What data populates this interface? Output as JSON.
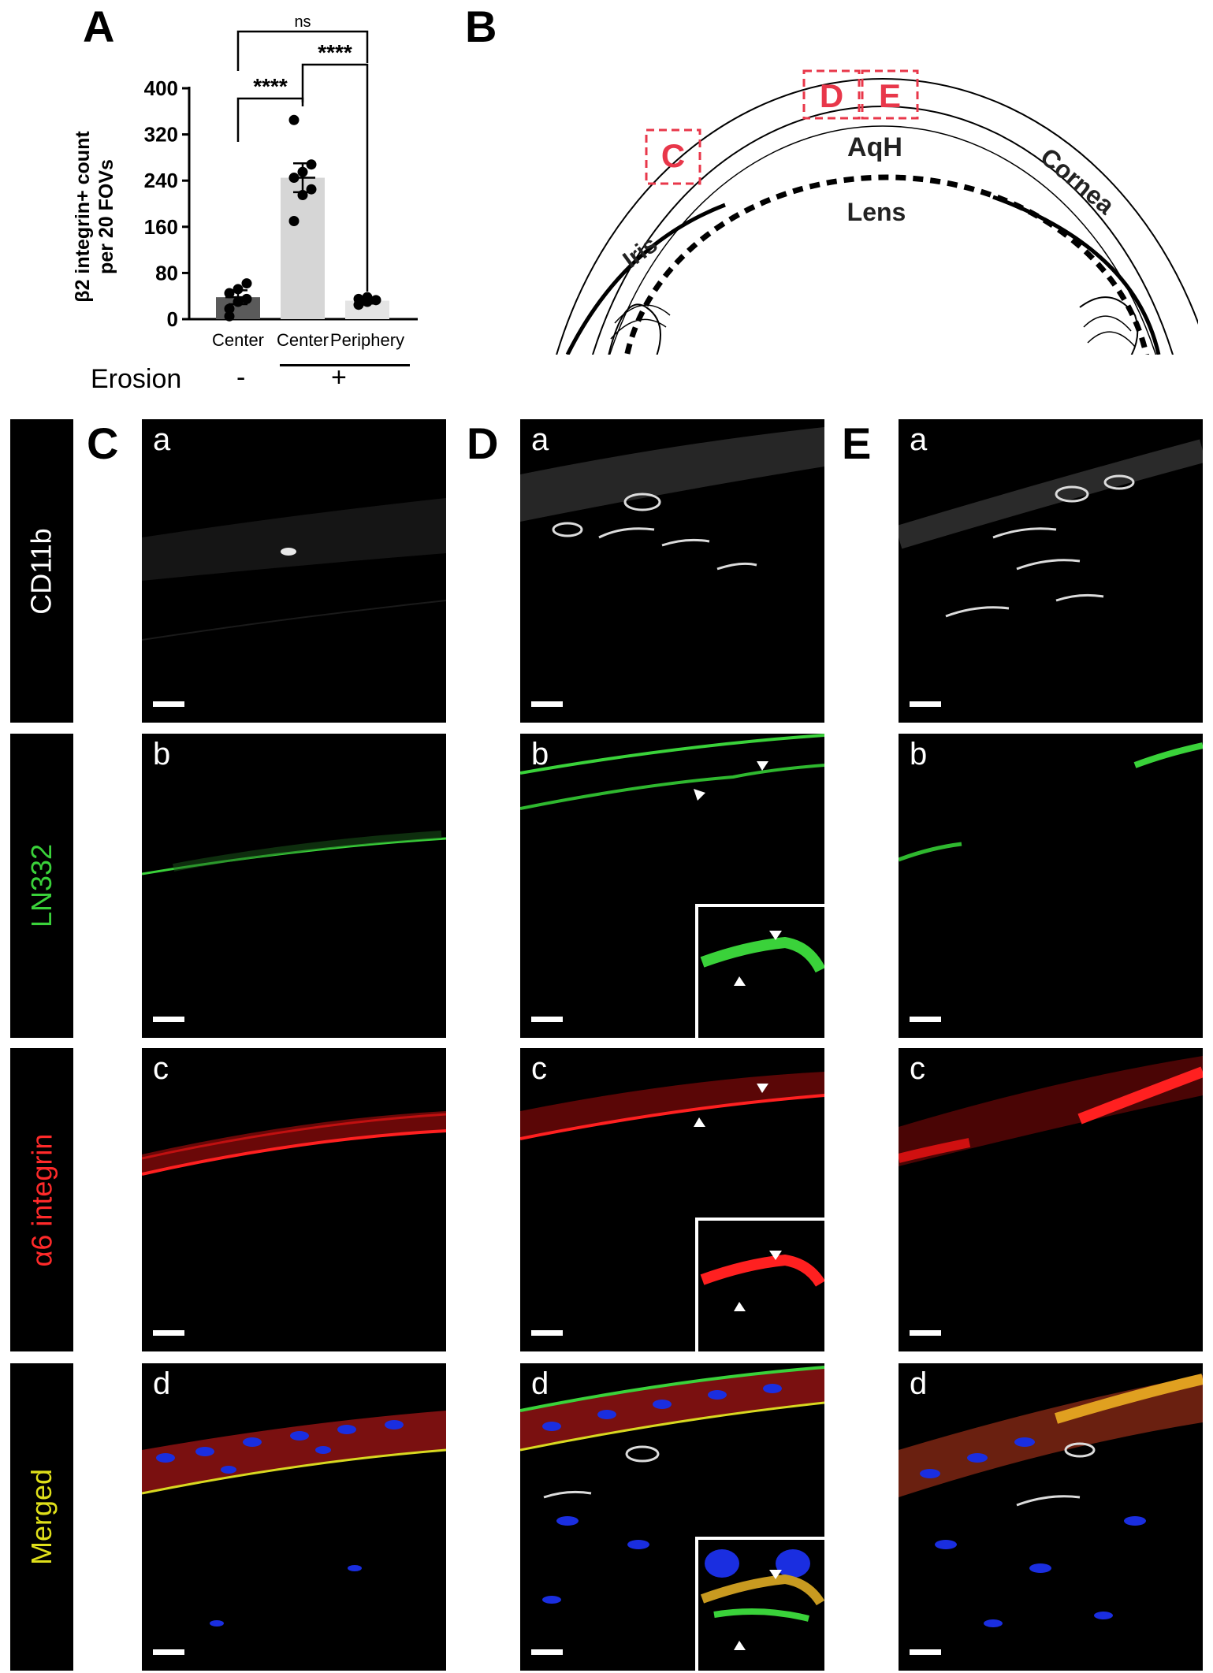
{
  "panel_letters": {
    "A": "A",
    "B": "B",
    "C": "C",
    "D": "D",
    "E": "E"
  },
  "chart_data": {
    "type": "bar",
    "ylabel": "β2 integrin+ count per 20 FOVs",
    "ylabel_lines": [
      "β2 integrin+ count",
      "per 20 FOVs"
    ],
    "categories": [
      "Center",
      "Center",
      "Periphery"
    ],
    "values": [
      38,
      245,
      32
    ],
    "error": [
      12,
      25,
      5
    ],
    "ylim": [
      0,
      400
    ],
    "yticks": [
      "0",
      "80",
      "160",
      "240",
      "320",
      "400"
    ],
    "points": [
      [
        18,
        30,
        35,
        45,
        52,
        62,
        5
      ],
      [
        170,
        215,
        225,
        245,
        255,
        268,
        345
      ],
      [
        25,
        30,
        33,
        35,
        38
      ]
    ],
    "group_label": "Erosion",
    "group_signs": [
      "-",
      "+"
    ],
    "significance": [
      "ns",
      "****",
      "****"
    ],
    "colors": [
      "#5a5a5a",
      "#d6d6d6",
      "#e4e4e4"
    ]
  },
  "diagram": {
    "boxes": [
      "C",
      "D",
      "E"
    ],
    "labels": {
      "aqh": "AqH",
      "lens": "Lens",
      "iris": "Iris",
      "cornea": "Cornea"
    }
  },
  "row_labels": [
    "CD11b",
    "LN332",
    "α6 integrin",
    "Merged"
  ],
  "row_label_colors": [
    "#ffffff",
    "#3ad23a",
    "#ff2a2a",
    "#e0e01a"
  ],
  "sublabels": [
    "a",
    "b",
    "c",
    "d"
  ]
}
